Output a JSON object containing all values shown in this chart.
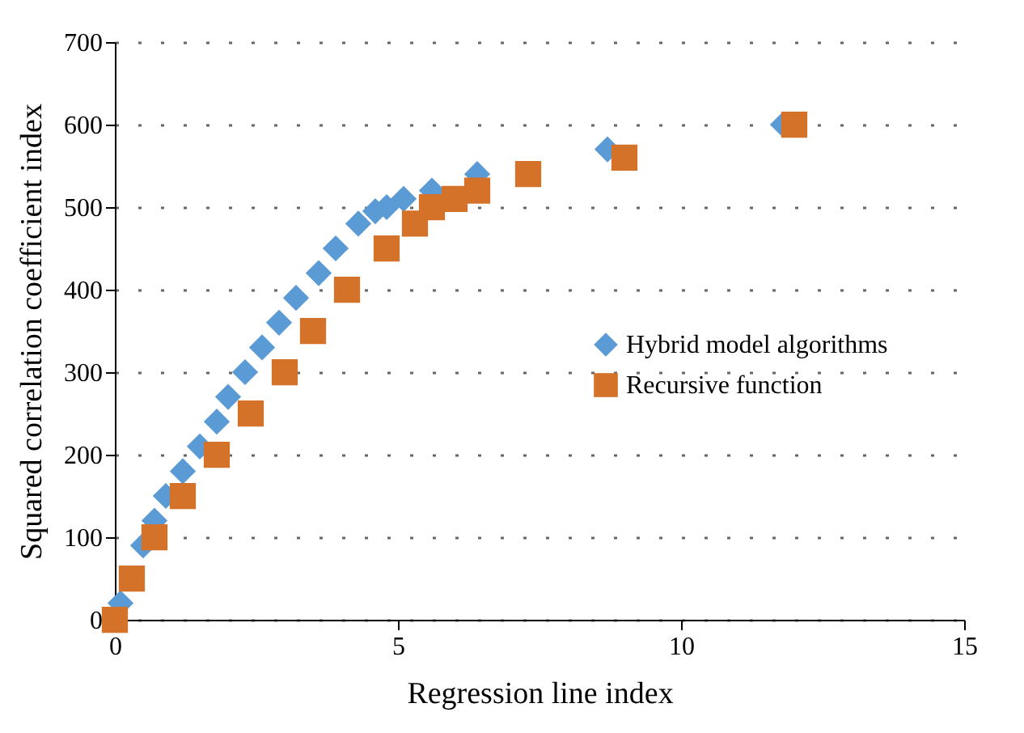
{
  "chart_data": {
    "type": "scatter",
    "xlabel": "Regression line index",
    "ylabel": "Squared correlation coefficient index",
    "xlim": [
      0,
      15
    ],
    "xticks": [
      0,
      5,
      10,
      15
    ],
    "ylim": [
      0,
      700
    ],
    "yticks": [
      0,
      100,
      200,
      300,
      400,
      500,
      600,
      700
    ],
    "grid": "y",
    "legend": "right",
    "series": [
      {
        "name": "Hybrid model algorithms",
        "color": "#5b9bd5",
        "marker": "diamond",
        "x": [
          0.1,
          0.5,
          0.7,
          0.9,
          1.2,
          1.5,
          1.8,
          2.0,
          2.3,
          2.6,
          2.9,
          3.2,
          3.6,
          3.9,
          4.3,
          4.6,
          4.8,
          5.1,
          5.6,
          6.4,
          8.7,
          11.8
        ],
        "values": [
          20,
          90,
          120,
          150,
          180,
          210,
          240,
          270,
          300,
          330,
          360,
          390,
          420,
          450,
          480,
          495,
          500,
          510,
          520,
          540,
          570,
          600
        ]
      },
      {
        "name": "Recursive function",
        "color": "#d4722a",
        "marker": "square",
        "x": [
          0,
          0.3,
          0.7,
          1.2,
          1.8,
          2.4,
          3.0,
          3.5,
          4.1,
          4.8,
          5.3,
          5.6,
          6.0,
          6.4,
          7.3,
          9.0,
          12.0
        ],
        "values": [
          0,
          50,
          100,
          150,
          200,
          250,
          300,
          350,
          400,
          450,
          480,
          500,
          510,
          520,
          540,
          560,
          600
        ]
      }
    ]
  }
}
